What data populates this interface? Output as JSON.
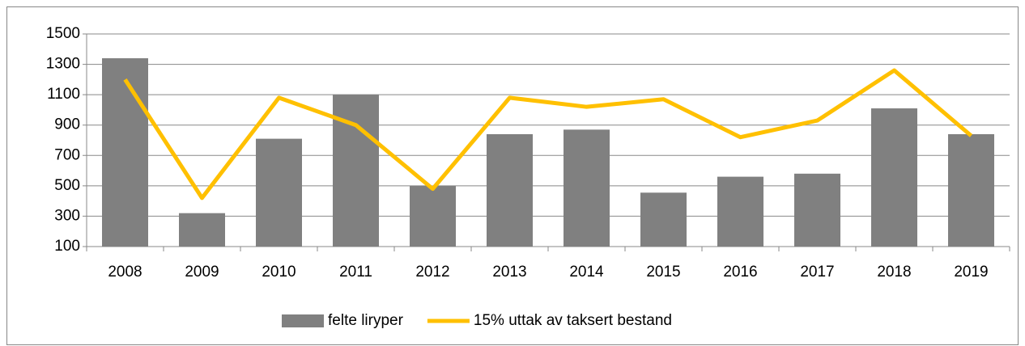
{
  "chart_data": {
    "type": "bar",
    "categories": [
      "2008",
      "2009",
      "2010",
      "2011",
      "2012",
      "2013",
      "2014",
      "2015",
      "2016",
      "2017",
      "2018",
      "2019"
    ],
    "series": [
      {
        "name": "felte liryper",
        "type": "bar",
        "color": "#808080",
        "values": [
          1340,
          320,
          810,
          1100,
          500,
          840,
          870,
          455,
          560,
          580,
          1010,
          840
        ]
      },
      {
        "name": "15% uttak av taksert bestand",
        "type": "line",
        "color": "#ffc000",
        "values": [
          1200,
          420,
          1080,
          900,
          480,
          1080,
          1020,
          1070,
          820,
          930,
          1260,
          830
        ]
      }
    ],
    "ylim": [
      100,
      1500
    ],
    "yticks": [
      100,
      300,
      500,
      700,
      900,
      1100,
      1300,
      1500
    ],
    "grid": true,
    "legend": "bottom"
  }
}
